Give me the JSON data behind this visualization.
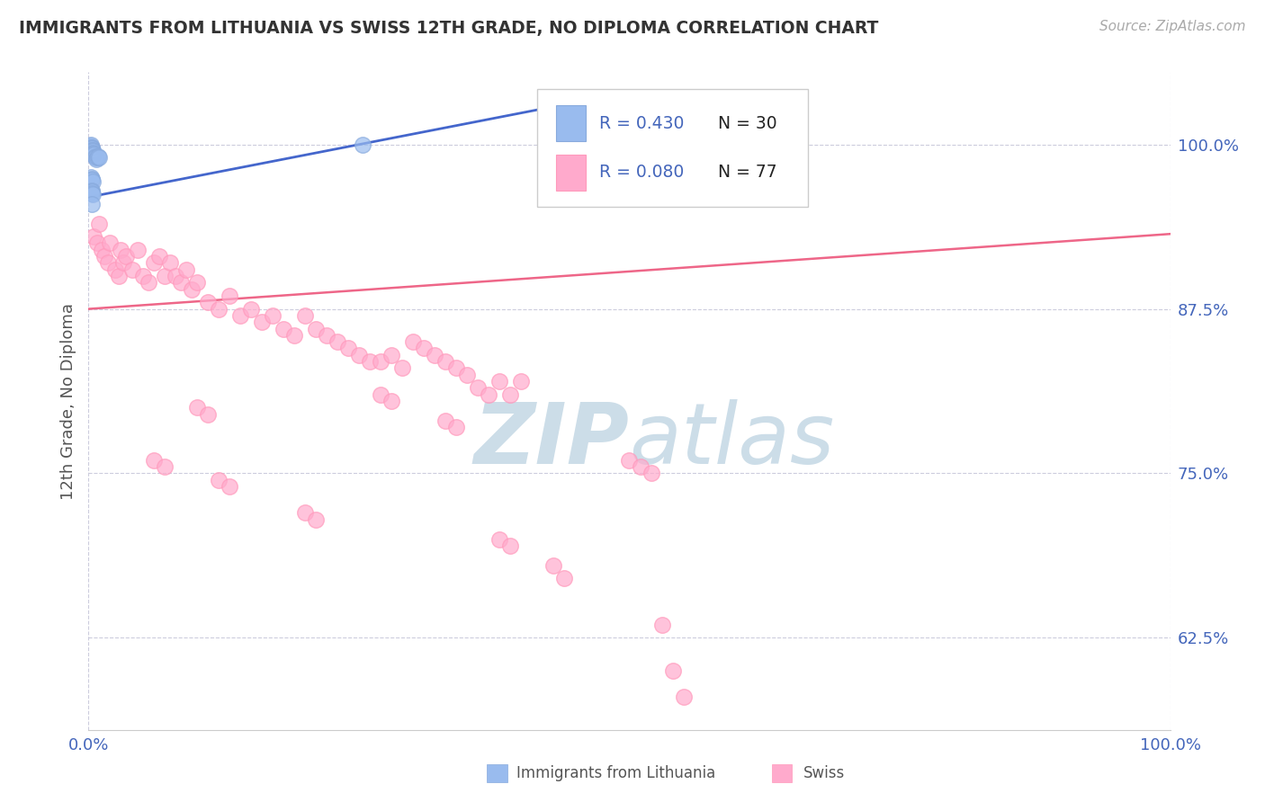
{
  "title": "IMMIGRANTS FROM LITHUANIA VS SWISS 12TH GRADE, NO DIPLOMA CORRELATION CHART",
  "source": "Source: ZipAtlas.com",
  "ylabel": "12th Grade, No Diploma",
  "ytick_labels": [
    "62.5%",
    "75.0%",
    "87.5%",
    "100.0%"
  ],
  "ytick_values": [
    0.625,
    0.75,
    0.875,
    1.0
  ],
  "xmin": 0.0,
  "xmax": 1.0,
  "ymin": 0.555,
  "ymax": 1.055,
  "legend_r1": "R = 0.430",
  "legend_n1": "N = 30",
  "legend_r2": "R = 0.080",
  "legend_n2": "N = 77",
  "color_blue": "#99BBEE",
  "color_pink": "#FFAACC",
  "color_blue_edge": "#88AADD",
  "color_pink_edge": "#FF99BB",
  "color_blue_line": "#4466CC",
  "color_pink_line": "#EE6688",
  "color_title": "#333333",
  "color_source": "#AAAAAA",
  "color_r_text": "#4466BB",
  "color_n_text": "#222222",
  "color_axis_tick": "#4466BB",
  "color_grid": "#CCCCDD",
  "color_watermark": "#CCDDE8",
  "blue_scatter_x": [
    0.001,
    0.002,
    0.002,
    0.003,
    0.003,
    0.003,
    0.003,
    0.003,
    0.004,
    0.004,
    0.004,
    0.004,
    0.005,
    0.005,
    0.006,
    0.006,
    0.007,
    0.008,
    0.009,
    0.01,
    0.002,
    0.003,
    0.003,
    0.004,
    0.003,
    0.003,
    0.003,
    0.004,
    0.003,
    0.253
  ],
  "blue_scatter_y": [
    0.999,
    1.0,
    0.998,
    0.998,
    0.997,
    0.996,
    0.995,
    0.994,
    0.996,
    0.995,
    0.994,
    0.993,
    0.993,
    0.992,
    0.991,
    0.99,
    0.989,
    0.99,
    0.991,
    0.99,
    0.975,
    0.974,
    0.973,
    0.972,
    0.965,
    0.964,
    0.963,
    0.962,
    0.955,
    1.0
  ],
  "pink_scatter_x": [
    0.005,
    0.008,
    0.01,
    0.012,
    0.015,
    0.018,
    0.02,
    0.025,
    0.028,
    0.03,
    0.032,
    0.035,
    0.04,
    0.045,
    0.05,
    0.055,
    0.06,
    0.065,
    0.07,
    0.075,
    0.08,
    0.085,
    0.09,
    0.095,
    0.1,
    0.11,
    0.12,
    0.13,
    0.14,
    0.15,
    0.16,
    0.17,
    0.18,
    0.19,
    0.2,
    0.21,
    0.22,
    0.23,
    0.24,
    0.25,
    0.26,
    0.27,
    0.28,
    0.29,
    0.3,
    0.31,
    0.32,
    0.33,
    0.34,
    0.35,
    0.36,
    0.37,
    0.38,
    0.39,
    0.4,
    0.1,
    0.11,
    0.27,
    0.28,
    0.33,
    0.34,
    0.06,
    0.07,
    0.12,
    0.13,
    0.2,
    0.21,
    0.5,
    0.51,
    0.52,
    0.38,
    0.39,
    0.43,
    0.44,
    0.53,
    0.54,
    0.55
  ],
  "pink_scatter_y": [
    0.93,
    0.925,
    0.94,
    0.92,
    0.915,
    0.91,
    0.925,
    0.905,
    0.9,
    0.92,
    0.91,
    0.915,
    0.905,
    0.92,
    0.9,
    0.895,
    0.91,
    0.915,
    0.9,
    0.91,
    0.9,
    0.895,
    0.905,
    0.89,
    0.895,
    0.88,
    0.875,
    0.885,
    0.87,
    0.875,
    0.865,
    0.87,
    0.86,
    0.855,
    0.87,
    0.86,
    0.855,
    0.85,
    0.845,
    0.84,
    0.835,
    0.835,
    0.84,
    0.83,
    0.85,
    0.845,
    0.84,
    0.835,
    0.83,
    0.825,
    0.815,
    0.81,
    0.82,
    0.81,
    0.82,
    0.8,
    0.795,
    0.81,
    0.805,
    0.79,
    0.785,
    0.76,
    0.755,
    0.745,
    0.74,
    0.72,
    0.715,
    0.76,
    0.755,
    0.75,
    0.7,
    0.695,
    0.68,
    0.67,
    0.635,
    0.6,
    0.58
  ],
  "blue_line_x0": 0.0,
  "blue_line_x1": 0.5,
  "blue_line_y0": 0.96,
  "blue_line_y1": 1.04,
  "pink_line_x0": 0.0,
  "pink_line_x1": 1.0,
  "pink_line_y0": 0.875,
  "pink_line_y1": 0.932
}
